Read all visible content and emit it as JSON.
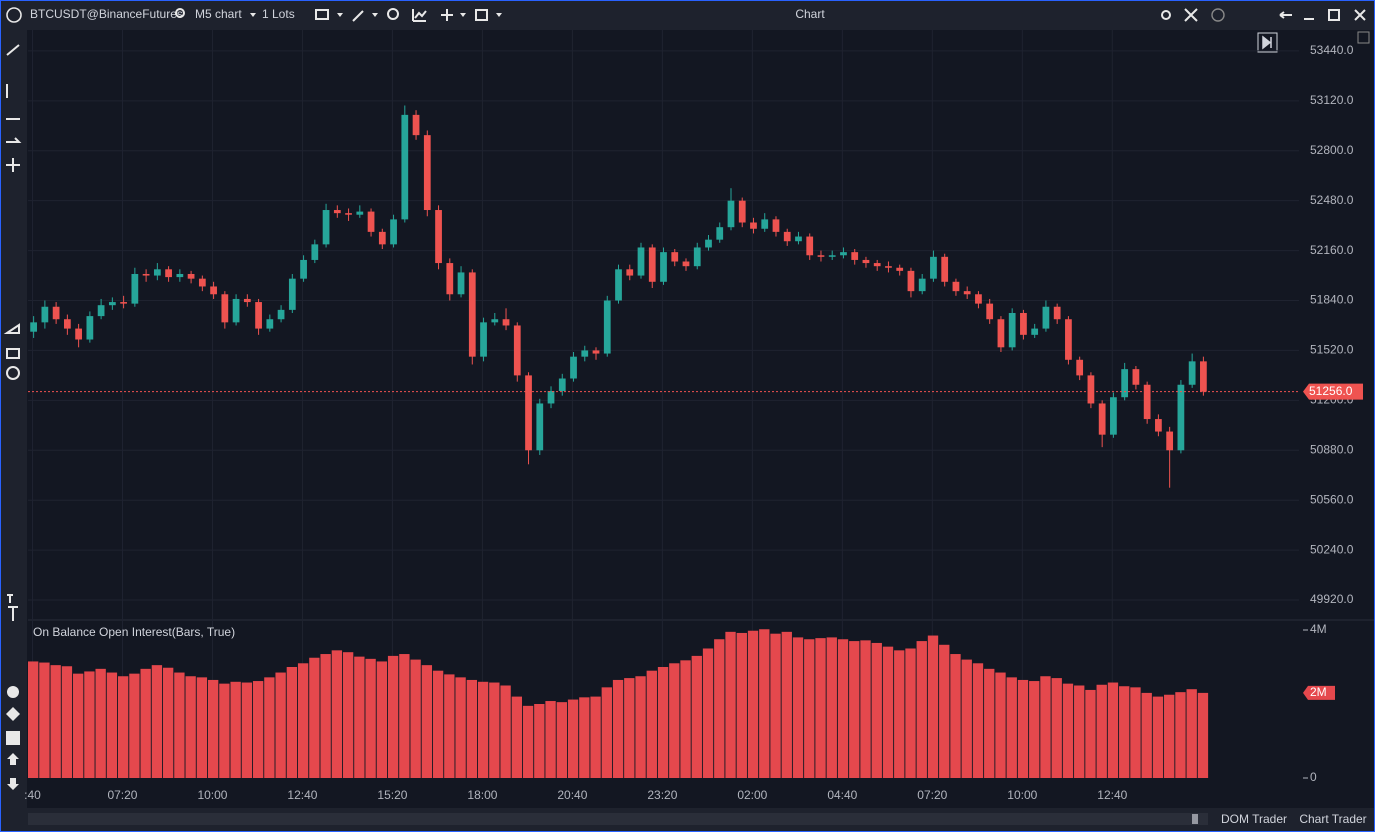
{
  "toolbar": {
    "symbol": "BTCUSDT@BinanceFutures",
    "timeframe": "M5 chart",
    "lots": "1 Lots",
    "title": "Chart"
  },
  "chart_data": [
    {
      "type": "candlestick",
      "up_color": "#26a69a",
      "down_color": "#ef5350",
      "grid": true,
      "ylim": [
        49792,
        53574
      ],
      "yticks": [
        {
          "value": 49920,
          "label": "49920.0"
        },
        {
          "value": 50240,
          "label": "50240.0"
        },
        {
          "value": 50560,
          "label": "50560.0"
        },
        {
          "value": 50880,
          "label": "50880.0"
        },
        {
          "value": 51200,
          "label": "51200.0"
        },
        {
          "value": 51520,
          "label": "51520.0"
        },
        {
          "value": 51840,
          "label": "51840.0"
        },
        {
          "value": 52160,
          "label": "52160.0"
        },
        {
          "value": 52480,
          "label": "52480.0"
        },
        {
          "value": 52800,
          "label": "52800.0"
        },
        {
          "value": 53120,
          "label": "53120.0"
        },
        {
          "value": 53440,
          "label": "53440.0"
        }
      ],
      "xlim": [
        0,
        113
      ],
      "xticks": [
        {
          "value": 0.4,
          "label": ":40"
        },
        {
          "value": 8.4,
          "label": "07:20"
        },
        {
          "value": 16.4,
          "label": "10:00"
        },
        {
          "value": 24.4,
          "label": "12:40"
        },
        {
          "value": 32.4,
          "label": "15:20"
        },
        {
          "value": 40.4,
          "label": "18:00"
        },
        {
          "value": 48.4,
          "label": "20:40"
        },
        {
          "value": 56.4,
          "label": "23:20"
        },
        {
          "value": 64.4,
          "label": "02:00"
        },
        {
          "value": 72.4,
          "label": "04:40"
        },
        {
          "value": 80.4,
          "label": "07:20"
        },
        {
          "value": 88.4,
          "label": "10:00"
        },
        {
          "value": 96.4,
          "label": "12:40"
        }
      ],
      "current_price": {
        "value": 51256,
        "label": "51256.0"
      },
      "candles": [
        [
          51640,
          51740,
          51600,
          51700
        ],
        [
          51700,
          51840,
          51660,
          51800
        ],
        [
          51800,
          51830,
          51690,
          51720
        ],
        [
          51720,
          51750,
          51620,
          51660
        ],
        [
          51660,
          51690,
          51540,
          51590
        ],
        [
          51590,
          51770,
          51570,
          51740
        ],
        [
          51740,
          51850,
          51720,
          51810
        ],
        [
          51810,
          51860,
          51780,
          51830
        ],
        [
          51830,
          51870,
          51790,
          51820
        ],
        [
          51820,
          52050,
          51800,
          52010
        ],
        [
          52010,
          52040,
          51960,
          52000
        ],
        [
          52000,
          52080,
          51970,
          52040
        ],
        [
          52040,
          52060,
          51960,
          51990
        ],
        [
          51990,
          52040,
          51960,
          52010
        ],
        [
          52010,
          52030,
          51950,
          51980
        ],
        [
          51980,
          52000,
          51900,
          51930
        ],
        [
          51930,
          51960,
          51850,
          51880
        ],
        [
          51880,
          51900,
          51660,
          51700
        ],
        [
          51700,
          51880,
          51680,
          51850
        ],
        [
          51850,
          51880,
          51800,
          51830
        ],
        [
          51830,
          51850,
          51620,
          51660
        ],
        [
          51660,
          51750,
          51640,
          51720
        ],
        [
          51720,
          51810,
          51700,
          51780
        ],
        [
          51780,
          52010,
          51760,
          51980
        ],
        [
          51980,
          52130,
          51960,
          52100
        ],
        [
          52100,
          52230,
          52080,
          52200
        ],
        [
          52200,
          52460,
          52180,
          52420
        ],
        [
          52420,
          52450,
          52370,
          52400
        ],
        [
          52400,
          52430,
          52350,
          52390
        ],
        [
          52390,
          52450,
          52370,
          52410
        ],
        [
          52410,
          52430,
          52250,
          52280
        ],
        [
          52280,
          52300,
          52170,
          52200
        ],
        [
          52200,
          52390,
          52180,
          52360
        ],
        [
          52360,
          53090,
          52340,
          53030
        ],
        [
          53030,
          53060,
          52870,
          52900
        ],
        [
          52900,
          52930,
          52380,
          52420
        ],
        [
          52420,
          52450,
          52040,
          52080
        ],
        [
          52080,
          52110,
          51840,
          51880
        ],
        [
          51880,
          52060,
          51860,
          52020
        ],
        [
          52020,
          52040,
          51430,
          51480
        ],
        [
          51480,
          51730,
          51450,
          51700
        ],
        [
          51700,
          51760,
          51680,
          51720
        ],
        [
          51720,
          51790,
          51650,
          51680
        ],
        [
          51680,
          51700,
          51320,
          51360
        ],
        [
          51360,
          51380,
          50790,
          50880
        ],
        [
          50880,
          51210,
          50850,
          51180
        ],
        [
          51180,
          51290,
          51150,
          51260
        ],
        [
          51260,
          51370,
          51230,
          51340
        ],
        [
          51340,
          51510,
          51320,
          51480
        ],
        [
          51480,
          51550,
          51450,
          51520
        ],
        [
          51520,
          51540,
          51460,
          51500
        ],
        [
          51500,
          51870,
          51480,
          51840
        ],
        [
          51840,
          52070,
          51820,
          52040
        ],
        [
          52040,
          52070,
          51970,
          52000
        ],
        [
          52000,
          52210,
          51980,
          52180
        ],
        [
          52180,
          52200,
          51920,
          51960
        ],
        [
          51960,
          52180,
          51940,
          52150
        ],
        [
          52150,
          52170,
          52060,
          52090
        ],
        [
          52090,
          52110,
          52030,
          52060
        ],
        [
          52060,
          52210,
          52040,
          52180
        ],
        [
          52180,
          52260,
          52160,
          52230
        ],
        [
          52230,
          52340,
          52210,
          52310
        ],
        [
          52310,
          52560,
          52290,
          52480
        ],
        [
          52480,
          52500,
          52310,
          52340
        ],
        [
          52340,
          52370,
          52270,
          52300
        ],
        [
          52300,
          52400,
          52280,
          52360
        ],
        [
          52360,
          52380,
          52250,
          52280
        ],
        [
          52280,
          52300,
          52190,
          52220
        ],
        [
          52220,
          52280,
          52200,
          52250
        ],
        [
          52250,
          52270,
          52100,
          52130
        ],
        [
          52130,
          52160,
          52090,
          52120
        ],
        [
          52120,
          52160,
          52100,
          52130
        ],
        [
          52130,
          52180,
          52110,
          52150
        ],
        [
          52150,
          52170,
          52070,
          52100
        ],
        [
          52100,
          52120,
          52050,
          52080
        ],
        [
          52080,
          52100,
          52030,
          52060
        ],
        [
          52060,
          52090,
          52020,
          52050
        ],
        [
          52050,
          52070,
          52000,
          52030
        ],
        [
          52030,
          52050,
          51860,
          51900
        ],
        [
          51900,
          52010,
          51880,
          51980
        ],
        [
          51980,
          52160,
          51960,
          52120
        ],
        [
          52120,
          52140,
          51930,
          51960
        ],
        [
          51960,
          51980,
          51870,
          51900
        ],
        [
          51900,
          51930,
          51850,
          51880
        ],
        [
          51880,
          51900,
          51790,
          51820
        ],
        [
          51820,
          51850,
          51690,
          51720
        ],
        [
          51720,
          51740,
          51510,
          51540
        ],
        [
          51540,
          51790,
          51520,
          51760
        ],
        [
          51760,
          51780,
          51590,
          51620
        ],
        [
          51620,
          51690,
          51600,
          51660
        ],
        [
          51660,
          51840,
          51640,
          51800
        ],
        [
          51800,
          51820,
          51690,
          51720
        ],
        [
          51720,
          51740,
          51430,
          51460
        ],
        [
          51460,
          51480,
          51330,
          51360
        ],
        [
          51360,
          51380,
          51150,
          51180
        ],
        [
          51180,
          51200,
          50900,
          50980
        ],
        [
          50980,
          51250,
          50960,
          51220
        ],
        [
          51220,
          51440,
          51200,
          51400
        ],
        [
          51400,
          51420,
          51270,
          51300
        ],
        [
          51300,
          51320,
          51050,
          51080
        ],
        [
          51080,
          51110,
          50970,
          51000
        ],
        [
          51000,
          51030,
          50640,
          50880
        ],
        [
          50880,
          51330,
          50860,
          51300
        ],
        [
          51300,
          51500,
          51280,
          51450
        ],
        [
          51450,
          51480,
          51230,
          51256
        ]
      ]
    },
    {
      "type": "bar",
      "title": "On Balance Open Interest(Bars, True)",
      "color": "#e5484d",
      "xlim": [
        0,
        113
      ],
      "ylim": [
        0,
        4.27
      ],
      "yticks": [
        {
          "value": 4,
          "label": "4M"
        },
        0
      ],
      "current_value": {
        "value": 2.3,
        "label": "2M"
      },
      "values": [
        3.15,
        3.12,
        3.05,
        3.02,
        2.82,
        2.88,
        2.95,
        2.85,
        2.75,
        2.82,
        2.95,
        3.05,
        2.98,
        2.85,
        2.75,
        2.72,
        2.65,
        2.55,
        2.6,
        2.58,
        2.62,
        2.72,
        2.85,
        3.0,
        3.1,
        3.25,
        3.35,
        3.45,
        3.4,
        3.28,
        3.22,
        3.15,
        3.3,
        3.35,
        3.2,
        3.05,
        2.9,
        2.8,
        2.72,
        2.65,
        2.6,
        2.58,
        2.5,
        2.2,
        1.95,
        2.0,
        2.08,
        2.05,
        2.12,
        2.18,
        2.2,
        2.45,
        2.65,
        2.7,
        2.75,
        2.9,
        3.0,
        3.1,
        3.18,
        3.3,
        3.5,
        3.75,
        3.95,
        3.92,
        3.98,
        4.02,
        3.9,
        3.95,
        3.8,
        3.75,
        3.78,
        3.8,
        3.75,
        3.7,
        3.72,
        3.65,
        3.55,
        3.45,
        3.5,
        3.7,
        3.85,
        3.6,
        3.35,
        3.2,
        3.1,
        2.95,
        2.85,
        2.72,
        2.65,
        2.62,
        2.75,
        2.7,
        2.55,
        2.5,
        2.38,
        2.52,
        2.58,
        2.48,
        2.45,
        2.3,
        2.2,
        2.25,
        2.32,
        2.4,
        2.3
      ]
    }
  ],
  "footer": {
    "tabs": [
      "DOM Trader",
      "Chart Trader"
    ]
  }
}
